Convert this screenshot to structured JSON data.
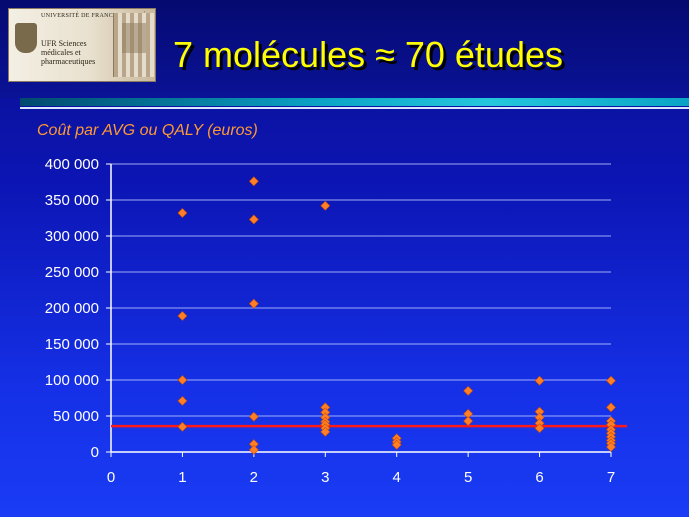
{
  "header": {
    "title": "7 molécules ≈ 70 études",
    "logo": {
      "university": "UNIVERSITÉ DE FRANCHE-COMTÉ",
      "ufr": "UFR Sciences médicales et pharmaceutiques"
    }
  },
  "colors": {
    "title": "#ffff00",
    "chart_title": "#ff9933",
    "points": "#ff7f27",
    "reference_line": "#ff1a1a",
    "grid": "#b8c4ff",
    "axis": "#ffffff"
  },
  "chart_data": {
    "type": "scatter",
    "title": "Coût par AVG ou QALY (euros)",
    "xlabel": "",
    "ylabel": "",
    "xlim": [
      0,
      7
    ],
    "ylim": [
      0,
      400000
    ],
    "x_ticks": [
      0,
      1,
      2,
      3,
      4,
      5,
      6,
      7
    ],
    "y_ticks": [
      0,
      50000,
      100000,
      150000,
      200000,
      250000,
      300000,
      350000,
      400000
    ],
    "x_tick_labels": [
      "0",
      "1",
      "2",
      "3",
      "4",
      "5",
      "6",
      "7"
    ],
    "y_tick_labels": [
      "0",
      "50 000",
      "100 000",
      "150 000",
      "200 000",
      "250 000",
      "300 000",
      "350 000",
      "400 000"
    ],
    "grid": "horizontal",
    "reference_line": {
      "y": 36000
    },
    "points": [
      {
        "x": 1,
        "y": 332000
      },
      {
        "x": 1,
        "y": 189000
      },
      {
        "x": 1,
        "y": 100000
      },
      {
        "x": 1,
        "y": 71000
      },
      {
        "x": 1,
        "y": 35000
      },
      {
        "x": 2,
        "y": 376000
      },
      {
        "x": 2,
        "y": 323000
      },
      {
        "x": 2,
        "y": 206000
      },
      {
        "x": 2,
        "y": 49000
      },
      {
        "x": 2,
        "y": 11000
      },
      {
        "x": 2,
        "y": 3000
      },
      {
        "x": 3,
        "y": 342000
      },
      {
        "x": 3,
        "y": 62000
      },
      {
        "x": 3,
        "y": 55000
      },
      {
        "x": 3,
        "y": 48000
      },
      {
        "x": 3,
        "y": 42000
      },
      {
        "x": 3,
        "y": 38000
      },
      {
        "x": 3,
        "y": 33000
      },
      {
        "x": 3,
        "y": 28000
      },
      {
        "x": 4,
        "y": 19000
      },
      {
        "x": 4,
        "y": 14000
      },
      {
        "x": 4,
        "y": 10000
      },
      {
        "x": 5,
        "y": 85000
      },
      {
        "x": 5,
        "y": 53000
      },
      {
        "x": 5,
        "y": 43000
      },
      {
        "x": 6,
        "y": 99000
      },
      {
        "x": 6,
        "y": 56000
      },
      {
        "x": 6,
        "y": 48000
      },
      {
        "x": 6,
        "y": 40000
      },
      {
        "x": 6,
        "y": 33000
      },
      {
        "x": 7,
        "y": 99000
      },
      {
        "x": 7,
        "y": 62000
      },
      {
        "x": 7,
        "y": 43000
      },
      {
        "x": 7,
        "y": 38000
      },
      {
        "x": 7,
        "y": 31000
      },
      {
        "x": 7,
        "y": 26000
      },
      {
        "x": 7,
        "y": 21000
      },
      {
        "x": 7,
        "y": 16000
      },
      {
        "x": 7,
        "y": 12000
      },
      {
        "x": 7,
        "y": 7000
      }
    ]
  }
}
